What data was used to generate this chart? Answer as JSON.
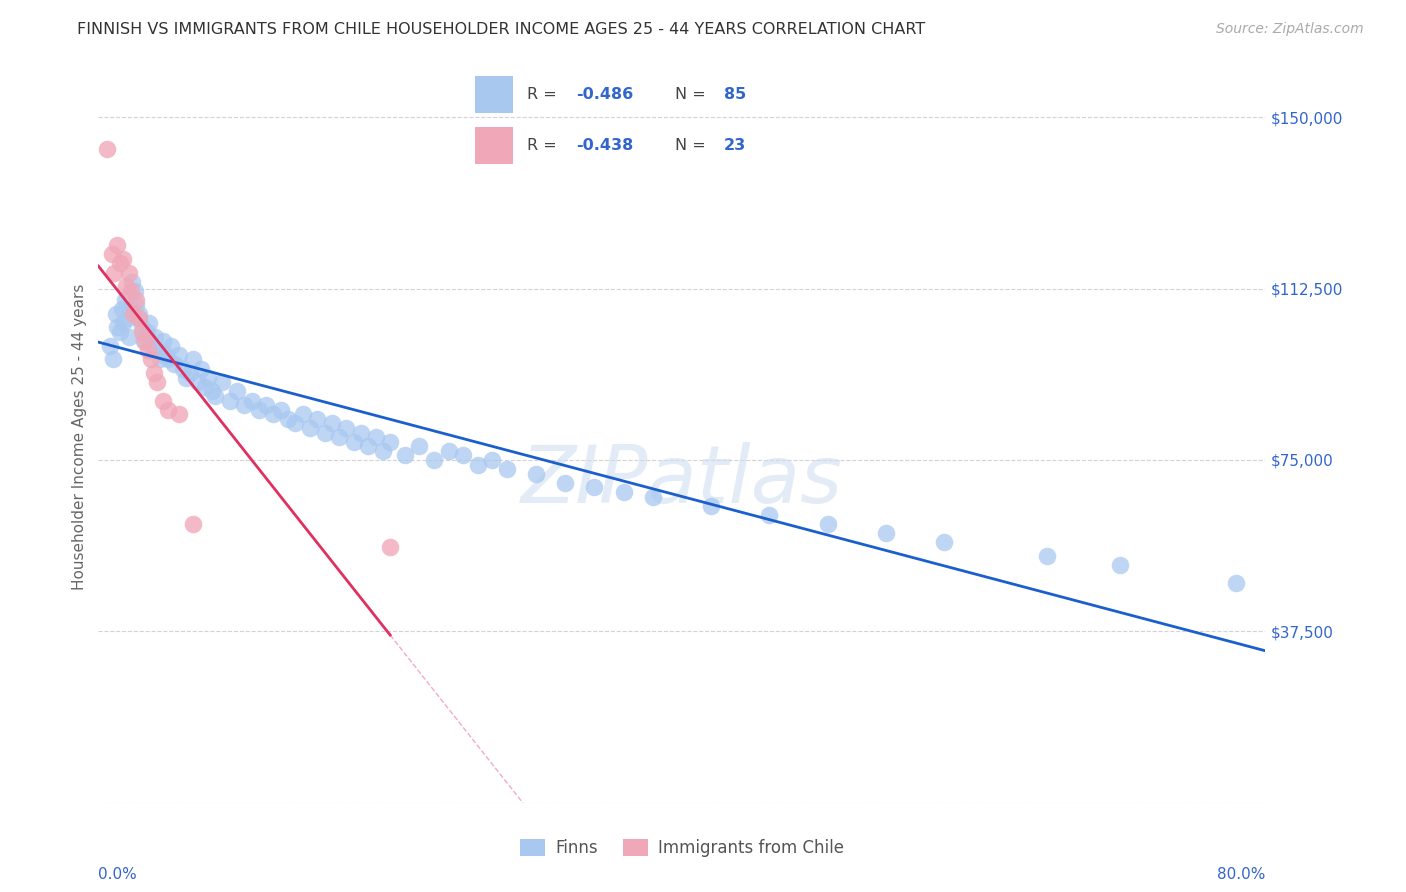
{
  "title": "FINNISH VS IMMIGRANTS FROM CHILE HOUSEHOLDER INCOME AGES 25 - 44 YEARS CORRELATION CHART",
  "source": "Source: ZipAtlas.com",
  "ylabel": "Householder Income Ages 25 - 44 years",
  "xmin": 0.0,
  "xmax": 0.8,
  "ymin": 0,
  "ymax": 160000,
  "yticks": [
    0,
    37500,
    75000,
    112500,
    150000
  ],
  "ytick_labels": [
    "",
    "$37,500",
    "$75,000",
    "$112,500",
    "$150,000"
  ],
  "grid_color": "#c8c8c8",
  "background_color": "#ffffff",
  "watermark_text": "ZIPatlas",
  "legend_r1": "R = -0.486",
  "legend_n1": "N = 85",
  "legend_r2": "R = -0.438",
  "legend_n2": "N = 23",
  "blue_scatter": "#a8c8f0",
  "pink_scatter": "#f0a8b8",
  "line_blue": "#1a5fcc",
  "line_pink": "#e03060",
  "text_blue": "#3366cc",
  "finns_label": "Finns",
  "chile_label": "Immigrants from Chile",
  "finns_x": [
    0.008,
    0.01,
    0.012,
    0.013,
    0.015,
    0.016,
    0.017,
    0.018,
    0.02,
    0.021,
    0.022,
    0.023,
    0.025,
    0.026,
    0.027,
    0.028,
    0.03,
    0.031,
    0.033,
    0.035,
    0.037,
    0.039,
    0.04,
    0.042,
    0.044,
    0.046,
    0.048,
    0.05,
    0.052,
    0.055,
    0.058,
    0.06,
    0.063,
    0.065,
    0.068,
    0.07,
    0.073,
    0.075,
    0.078,
    0.08,
    0.085,
    0.09,
    0.095,
    0.1,
    0.105,
    0.11,
    0.115,
    0.12,
    0.125,
    0.13,
    0.135,
    0.14,
    0.145,
    0.15,
    0.155,
    0.16,
    0.165,
    0.17,
    0.175,
    0.18,
    0.185,
    0.19,
    0.195,
    0.2,
    0.21,
    0.22,
    0.23,
    0.24,
    0.25,
    0.26,
    0.27,
    0.28,
    0.3,
    0.32,
    0.34,
    0.36,
    0.38,
    0.42,
    0.46,
    0.5,
    0.54,
    0.58,
    0.65,
    0.7,
    0.78
  ],
  "finns_y": [
    100000,
    97000,
    107000,
    104000,
    103000,
    108000,
    105000,
    110000,
    106000,
    102000,
    108000,
    114000,
    112000,
    109000,
    106000,
    107000,
    104000,
    101000,
    103000,
    105000,
    100000,
    102000,
    99000,
    97000,
    101000,
    98000,
    97000,
    100000,
    96000,
    98000,
    95000,
    93000,
    94000,
    97000,
    92000,
    95000,
    91000,
    93000,
    90000,
    89000,
    92000,
    88000,
    90000,
    87000,
    88000,
    86000,
    87000,
    85000,
    86000,
    84000,
    83000,
    85000,
    82000,
    84000,
    81000,
    83000,
    80000,
    82000,
    79000,
    81000,
    78000,
    80000,
    77000,
    79000,
    76000,
    78000,
    75000,
    77000,
    76000,
    74000,
    75000,
    73000,
    72000,
    70000,
    69000,
    68000,
    67000,
    65000,
    63000,
    61000,
    59000,
    57000,
    54000,
    52000,
    48000
  ],
  "chile_x": [
    0.006,
    0.009,
    0.011,
    0.013,
    0.015,
    0.017,
    0.019,
    0.021,
    0.022,
    0.024,
    0.026,
    0.028,
    0.03,
    0.032,
    0.034,
    0.036,
    0.038,
    0.04,
    0.044,
    0.048,
    0.055,
    0.065,
    0.2
  ],
  "chile_y": [
    143000,
    120000,
    116000,
    122000,
    118000,
    119000,
    113000,
    116000,
    112000,
    107000,
    110000,
    106000,
    103000,
    101000,
    99000,
    97000,
    94000,
    92000,
    88000,
    86000,
    85000,
    61000,
    56000
  ]
}
